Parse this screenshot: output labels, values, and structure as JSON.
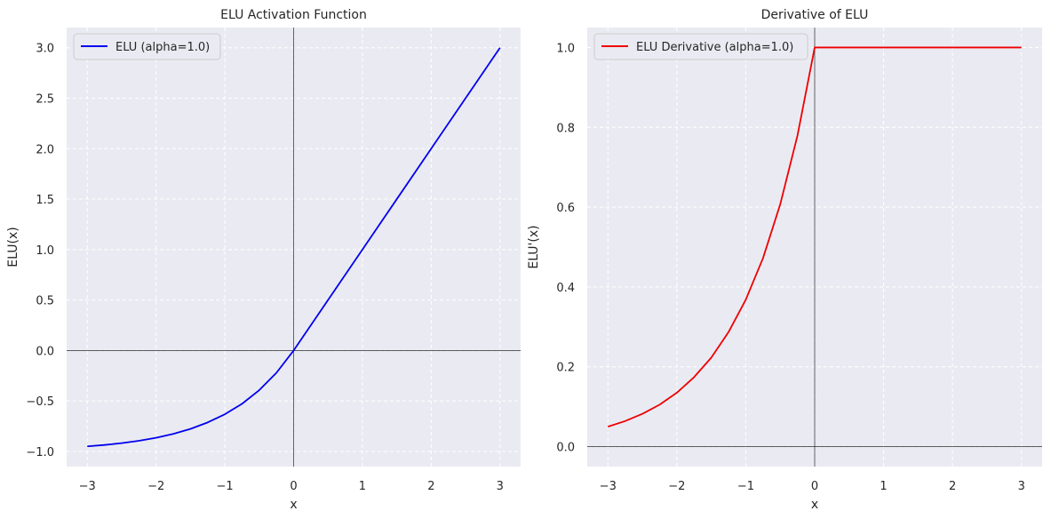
{
  "chart_data": [
    {
      "type": "line",
      "title": "ELU Activation Function",
      "xlabel": "x",
      "ylabel": "ELU(x)",
      "xlim": [
        -3.3,
        3.3
      ],
      "ylim": [
        -1.15,
        3.2
      ],
      "xticks": [
        -3,
        -2,
        -1,
        0,
        1,
        2,
        3
      ],
      "xtick_labels": [
        "−3",
        "−2",
        "−1",
        "0",
        "1",
        "2",
        "3"
      ],
      "yticks": [
        -1.0,
        -0.5,
        0.0,
        0.5,
        1.0,
        1.5,
        2.0,
        2.5,
        3.0
      ],
      "ytick_labels": [
        "−1.0",
        "−0.5",
        "0.0",
        "0.5",
        "1.0",
        "1.5",
        "2.0",
        "2.5",
        "3.0"
      ],
      "grid": true,
      "legend_position": "top-left",
      "reference_lines": {
        "x": 0,
        "y": 0
      },
      "series": [
        {
          "name": "ELU (alpha=1.0)",
          "color": "#0000ee",
          "x": [
            -3.0,
            -2.75,
            -2.5,
            -2.25,
            -2.0,
            -1.75,
            -1.5,
            -1.25,
            -1.0,
            -0.75,
            -0.5,
            -0.25,
            0.0,
            0.5,
            1.0,
            1.5,
            2.0,
            2.5,
            3.0
          ],
          "y": [
            -0.95,
            -0.936,
            -0.918,
            -0.895,
            -0.865,
            -0.826,
            -0.777,
            -0.713,
            -0.632,
            -0.528,
            -0.393,
            -0.221,
            0.0,
            0.5,
            1.0,
            1.5,
            2.0,
            2.5,
            3.0
          ]
        }
      ]
    },
    {
      "type": "line",
      "title": "Derivative of ELU",
      "xlabel": "x",
      "ylabel": "ELU'(x)",
      "xlim": [
        -3.3,
        3.3
      ],
      "ylim": [
        -0.05,
        1.05
      ],
      "xticks": [
        -3,
        -2,
        -1,
        0,
        1,
        2,
        3
      ],
      "xtick_labels": [
        "−3",
        "−2",
        "−1",
        "0",
        "1",
        "2",
        "3"
      ],
      "yticks": [
        0.0,
        0.2,
        0.4,
        0.6,
        0.8,
        1.0
      ],
      "ytick_labels": [
        "0.0",
        "0.2",
        "0.4",
        "0.6",
        "0.8",
        "1.0"
      ],
      "grid": true,
      "legend_position": "top-left",
      "reference_lines": {
        "x": 0,
        "y": 0
      },
      "series": [
        {
          "name": "ELU Derivative (alpha=1.0)",
          "color": "#ee0000",
          "x": [
            -3.0,
            -2.75,
            -2.5,
            -2.25,
            -2.0,
            -1.75,
            -1.5,
            -1.25,
            -1.0,
            -0.75,
            -0.5,
            -0.25,
            0.0,
            0.0,
            1.0,
            2.0,
            3.0
          ],
          "y": [
            0.05,
            0.064,
            0.082,
            0.105,
            0.135,
            0.174,
            0.223,
            0.287,
            0.368,
            0.472,
            0.607,
            0.779,
            1.0,
            1.0,
            1.0,
            1.0,
            1.0
          ]
        }
      ]
    }
  ]
}
